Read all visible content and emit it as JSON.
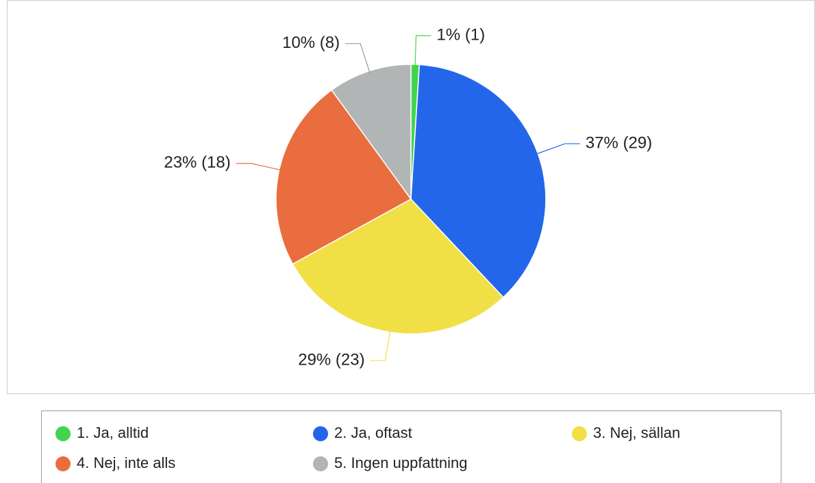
{
  "chart_data": {
    "type": "pie",
    "categories": [
      "1. Ja, alltid",
      "2. Ja, oftast",
      "3. Nej, sällan",
      "4. Nej, inte alls",
      "5. Ingen uppfattning"
    ],
    "values": [
      1,
      37,
      29,
      23,
      10
    ],
    "value_labels": [
      "1% (1)",
      "37% (29)",
      "29% (23)",
      "23% (18)",
      "10% (8)"
    ],
    "colors": [
      "#42d44f",
      "#2366ea",
      "#f1e045",
      "#ea6d3f",
      "#b2b5b5"
    ],
    "legend": "bottom"
  }
}
